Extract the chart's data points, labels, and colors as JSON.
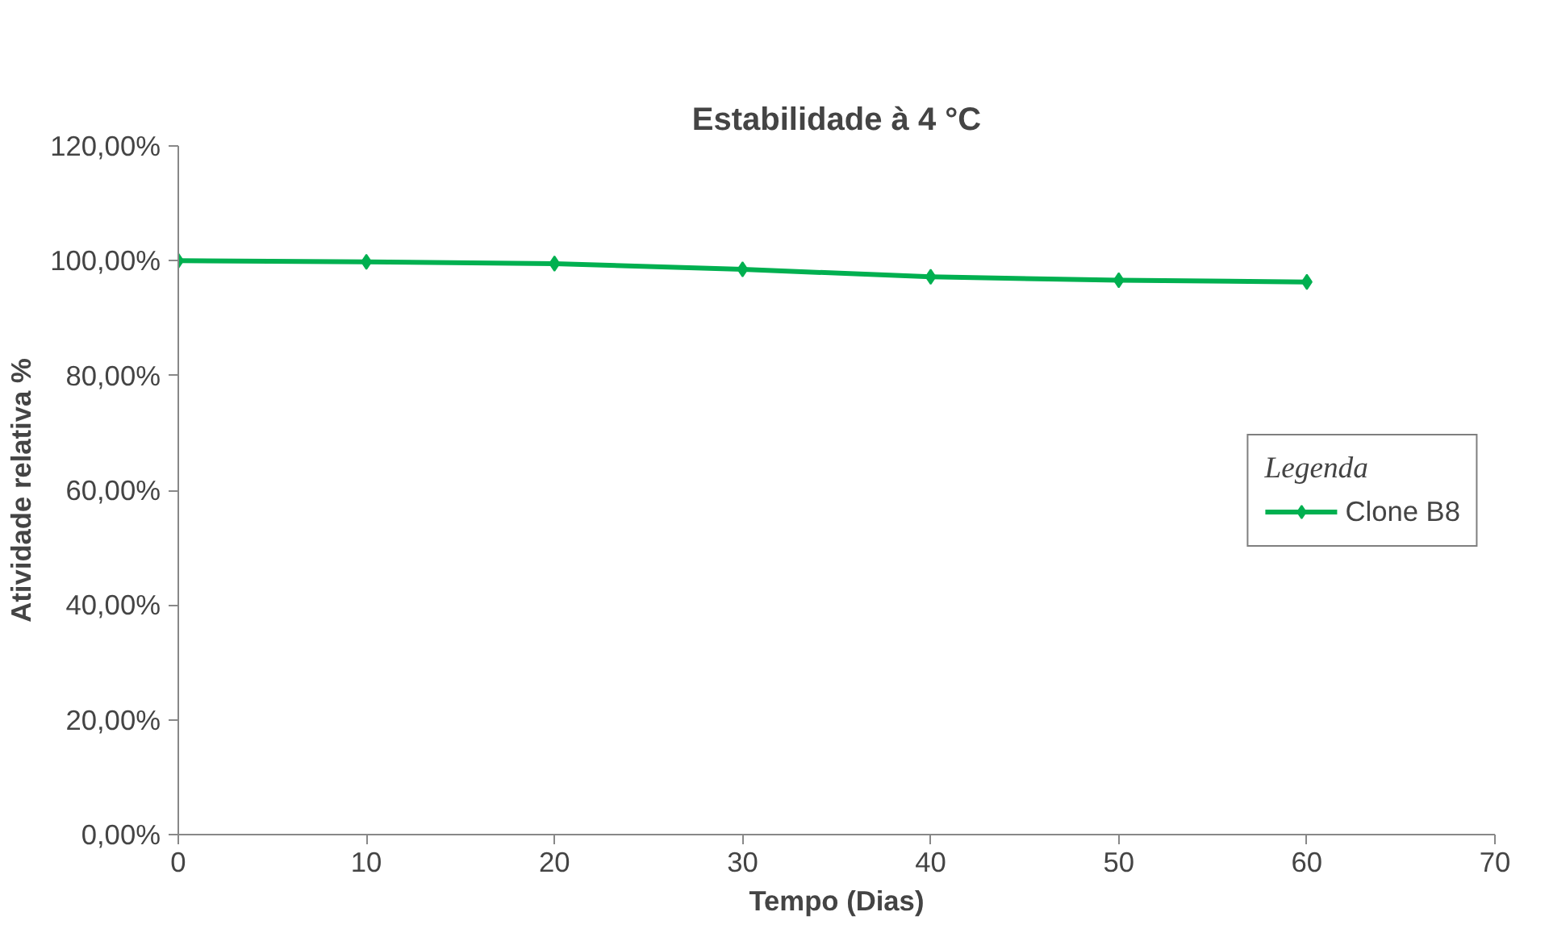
{
  "chart_data": {
    "type": "line",
    "title": "Estabilidade à 4 °C",
    "xlabel": "Tempo (Dias)",
    "ylabel": "Atividade relativa %",
    "legend_title": "Legenda",
    "x": [
      0,
      10,
      20,
      30,
      40,
      50,
      60
    ],
    "series": [
      {
        "name": "Clone B8",
        "color": "#00b050",
        "values": [
          100,
          99.8,
          99.5,
          98.5,
          97.2,
          96.6,
          96.3
        ]
      }
    ],
    "xlim": [
      0,
      70
    ],
    "xticks": [
      0,
      10,
      20,
      30,
      40,
      50,
      60,
      70
    ],
    "ylim": [
      0,
      120
    ],
    "yticks": [
      {
        "value": 0,
        "label": "0,00%"
      },
      {
        "value": 20,
        "label": "20,00%"
      },
      {
        "value": 40,
        "label": "40,00%"
      },
      {
        "value": 60,
        "label": "60,00%"
      },
      {
        "value": 80,
        "label": "80,00%"
      },
      {
        "value": 100,
        "label": "100,00%"
      },
      {
        "value": 120,
        "label": "120,00%"
      }
    ],
    "grid": false,
    "legend": "right",
    "marker": "diamond",
    "line_style": "solid"
  }
}
